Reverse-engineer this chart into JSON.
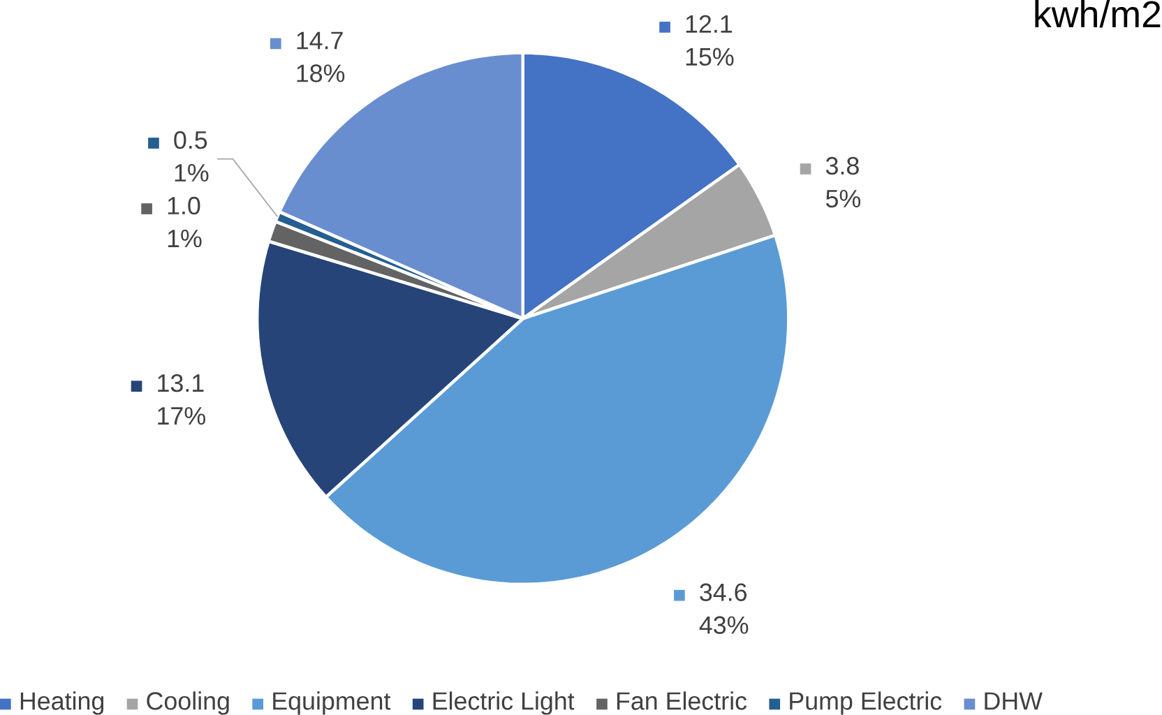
{
  "chart_data": {
    "type": "pie",
    "title": "kwh/m2",
    "categories": [
      "Heating",
      "Cooling",
      "Equipment",
      "Electric Light",
      "Fan Electric",
      "Pump Electric",
      "DHW"
    ],
    "values": [
      12.1,
      3.8,
      34.6,
      13.1,
      1.0,
      0.5,
      14.7
    ],
    "colors": [
      "#4472c4",
      "#a5a5a5",
      "#5b9bd5",
      "#264478",
      "#636363",
      "#255e91",
      "#698ed0"
    ],
    "value_labels": [
      "12.1 15%",
      "3.8 5%",
      "34.6 43%",
      "13.1 17%",
      "1.0 1%",
      "0.5 1%",
      "14.7 18%"
    ],
    "legend": "bottom"
  }
}
